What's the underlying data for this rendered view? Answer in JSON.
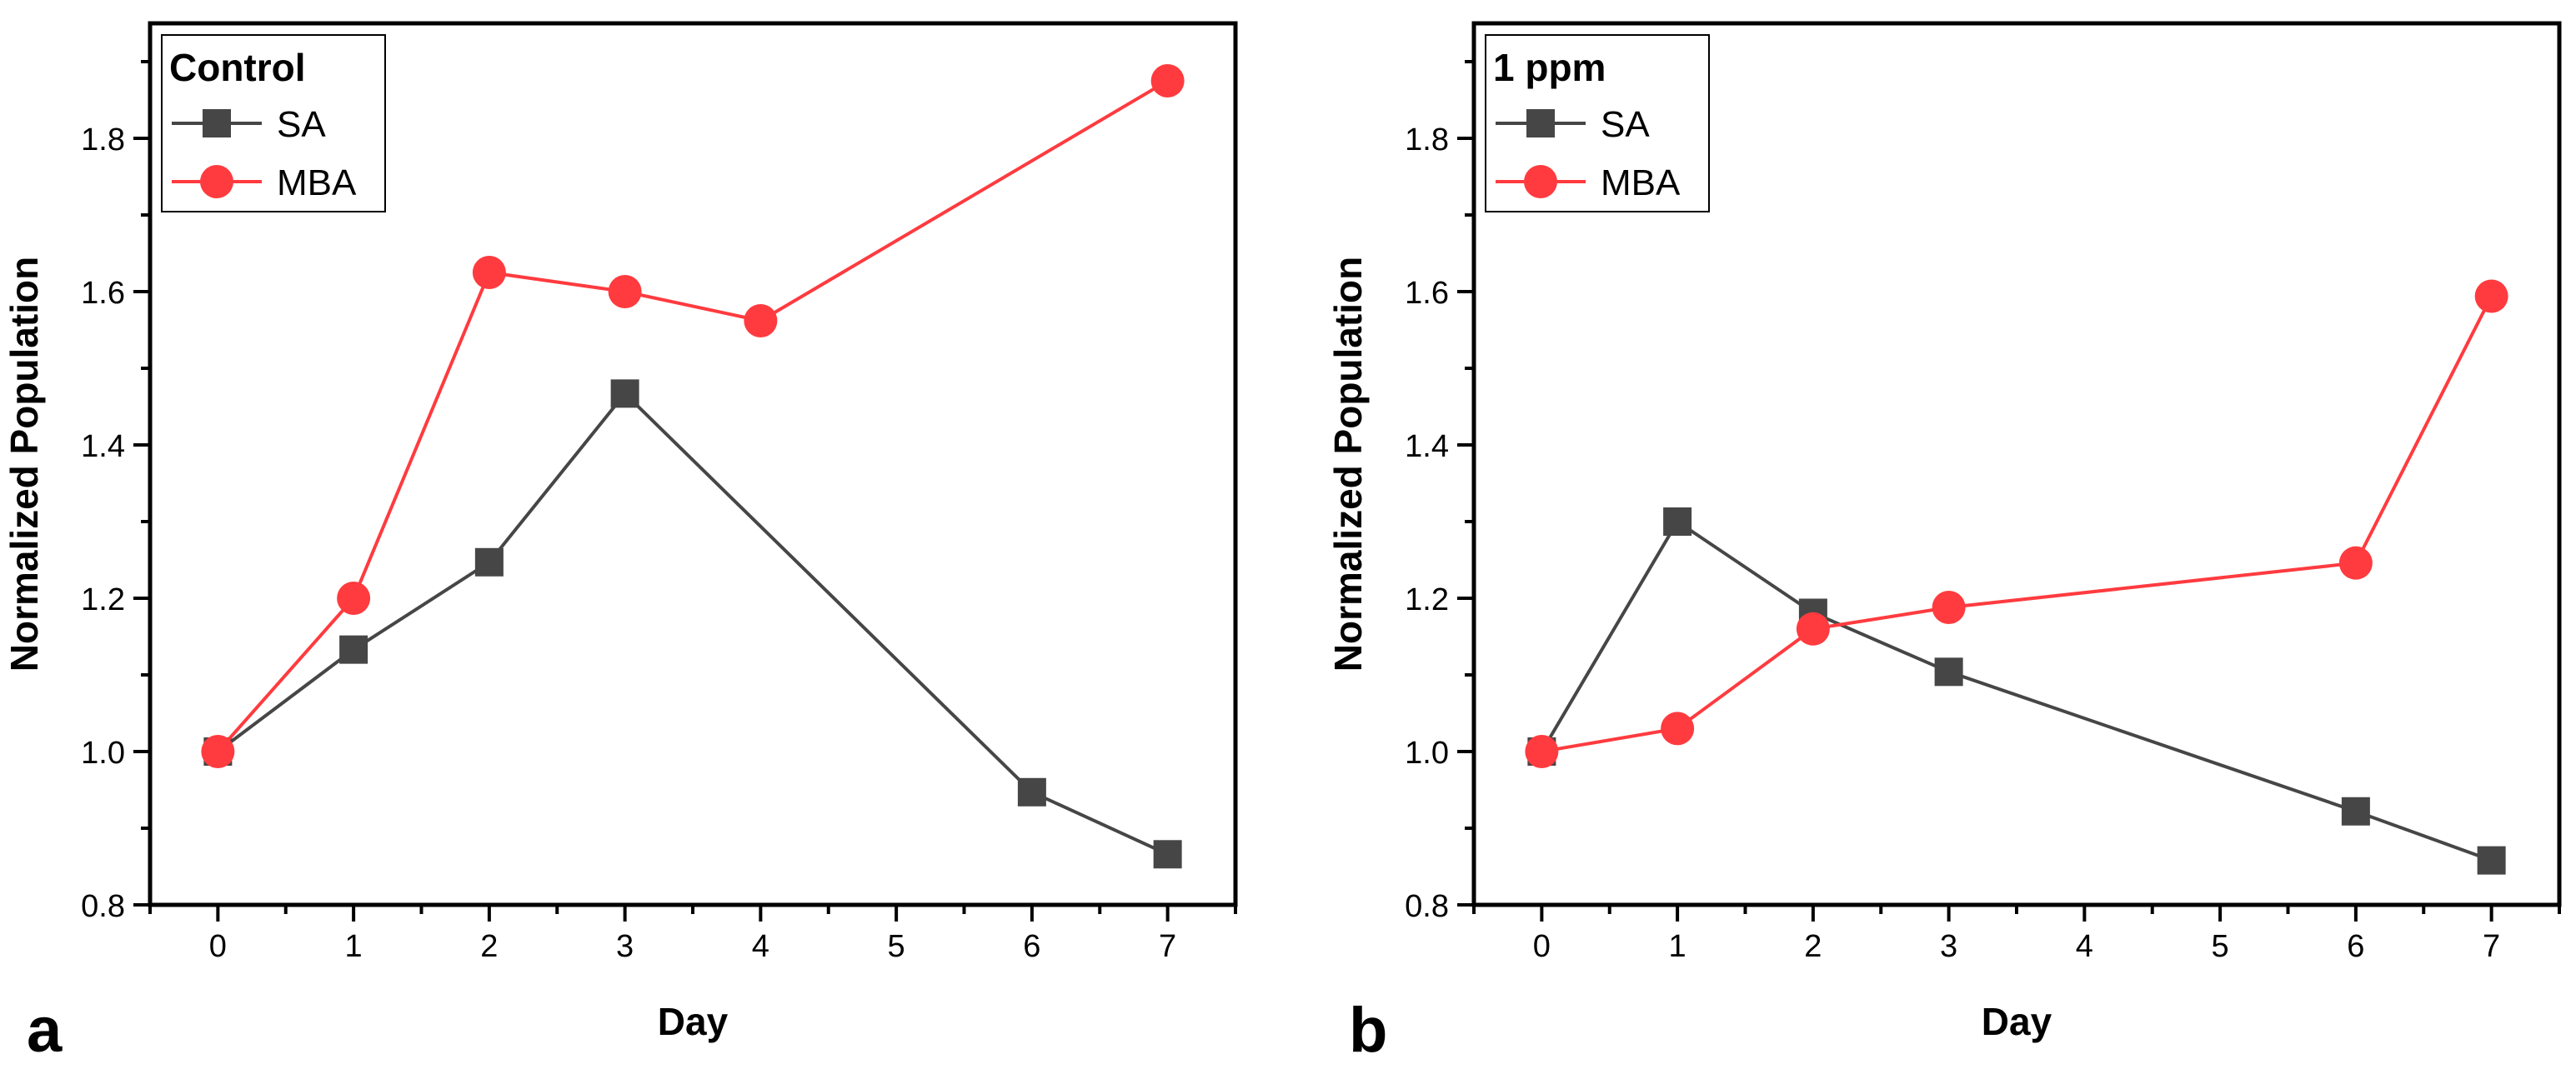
{
  "colors": {
    "series_sa": "#464646",
    "series_mba": "#ff3b3f",
    "axis": "#000000",
    "background": "#ffffff"
  },
  "chart_data": [
    {
      "type": "line",
      "panel_label": "a",
      "legend_title": "Control",
      "legend_position": "top-left",
      "xlabel": "Day",
      "ylabel": "Normalized Population",
      "xlim": [
        -0.5,
        7.5
      ],
      "ylim": [
        0.8,
        1.95
      ],
      "xticks": [
        0,
        1,
        2,
        3,
        4,
        5,
        6,
        7
      ],
      "yticks": [
        0.8,
        1.0,
        1.2,
        1.4,
        1.6,
        1.8
      ],
      "ytick_labels": [
        "0.8",
        "1.0",
        "1.2",
        "1.4",
        "1.6",
        "1.8"
      ],
      "grid": false,
      "series": [
        {
          "name": "SA",
          "marker": "square",
          "color": "#464646",
          "x": [
            0,
            1,
            2,
            3,
            6,
            7
          ],
          "y": [
            1.0,
            1.133,
            1.247,
            1.467,
            0.947,
            0.866
          ]
        },
        {
          "name": "MBA",
          "marker": "circle",
          "color": "#ff3b3f",
          "x": [
            0,
            1,
            2,
            3,
            4,
            7
          ],
          "y": [
            1.0,
            1.2,
            1.625,
            1.6,
            1.562,
            1.875
          ]
        }
      ]
    },
    {
      "type": "line",
      "panel_label": "b",
      "legend_title": "1 ppm",
      "legend_position": "top-left",
      "xlabel": "Day",
      "ylabel": "Normalized Population",
      "xlim": [
        -0.5,
        7.5
      ],
      "ylim": [
        0.8,
        1.95
      ],
      "xticks": [
        0,
        1,
        2,
        3,
        4,
        5,
        6,
        7
      ],
      "yticks": [
        0.8,
        1.0,
        1.2,
        1.4,
        1.6,
        1.8
      ],
      "ytick_labels": [
        "0.8",
        "1.0",
        "1.2",
        "1.4",
        "1.6",
        "1.8"
      ],
      "grid": false,
      "series": [
        {
          "name": "SA",
          "marker": "square",
          "color": "#464646",
          "x": [
            0,
            1,
            2,
            3,
            6,
            7
          ],
          "y": [
            1.0,
            1.3,
            1.181,
            1.104,
            0.922,
            0.858
          ]
        },
        {
          "name": "MBA",
          "marker": "circle",
          "color": "#ff3b3f",
          "x": [
            0,
            1,
            2,
            3,
            6,
            7
          ],
          "y": [
            1.0,
            1.03,
            1.16,
            1.188,
            1.246,
            1.594
          ]
        }
      ]
    }
  ]
}
